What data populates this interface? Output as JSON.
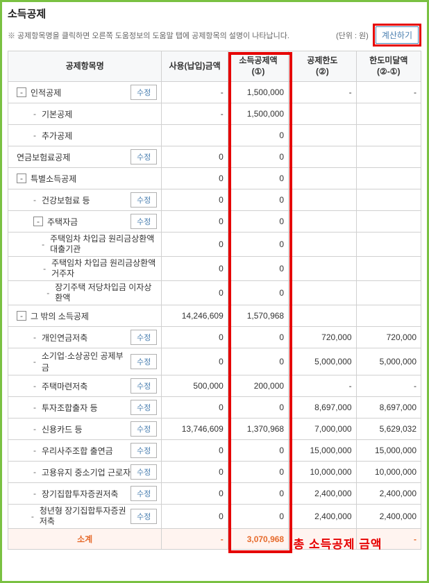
{
  "page": {
    "title": "소득공제",
    "subtitle": "※ 공제항목명을 클릭하면 오른쪽 도움정보의 도움말 탭에 공제항목의 설명이 나타납니다.",
    "unit": "(단위 : 원)",
    "calc_btn": "계산하기"
  },
  "headers": {
    "name": "공제항목명",
    "usage": "사용(납입)금액",
    "deduct": "소득공제액\n(①)",
    "limit": "공제한도\n(②)",
    "short": "한도미달액\n(②-①)"
  },
  "buttons": {
    "edit": "수정",
    "expand": "-"
  },
  "subtotal": {
    "label": "소계",
    "usage": "-",
    "deduct": "3,070,968",
    "short": "-"
  },
  "annotation": "총 소득공제 금액",
  "rows": [
    {
      "indent": 0,
      "exp": true,
      "bullet": false,
      "label": "인적공제",
      "edit": true,
      "usage": "-",
      "deduct": "1,500,000",
      "limit": "-",
      "short": "-"
    },
    {
      "indent": 1,
      "exp": false,
      "bullet": true,
      "label": "기본공제",
      "edit": false,
      "usage": "-",
      "deduct": "1,500,000",
      "limit": "",
      "short": ""
    },
    {
      "indent": 1,
      "exp": false,
      "bullet": true,
      "label": "추가공제",
      "edit": false,
      "usage": "",
      "deduct": "0",
      "limit": "",
      "short": ""
    },
    {
      "indent": 0,
      "exp": false,
      "bullet": false,
      "label": "연금보험료공제",
      "edit": true,
      "usage": "0",
      "deduct": "0",
      "limit": "",
      "short": ""
    },
    {
      "indent": 0,
      "exp": true,
      "bullet": false,
      "label": "특별소득공제",
      "edit": false,
      "usage": "0",
      "deduct": "0",
      "limit": "",
      "short": ""
    },
    {
      "indent": 1,
      "exp": false,
      "bullet": true,
      "label": "건강보험료 등",
      "edit": true,
      "usage": "0",
      "deduct": "0",
      "limit": "",
      "short": ""
    },
    {
      "indent": 1,
      "exp": true,
      "bullet": false,
      "label": "주택자금",
      "edit": true,
      "usage": "0",
      "deduct": "0",
      "limit": "",
      "short": ""
    },
    {
      "indent": 2,
      "exp": false,
      "bullet": true,
      "label": "주택임차 차입금 원리금상환액 대출기관",
      "edit": false,
      "usage": "0",
      "deduct": "0",
      "limit": "",
      "short": "",
      "two": true
    },
    {
      "indent": 2,
      "exp": false,
      "bullet": true,
      "label": "주택임차 차입금 원리금상환액 거주자",
      "edit": false,
      "usage": "0",
      "deduct": "0",
      "limit": "",
      "short": "",
      "two": true
    },
    {
      "indent": 2,
      "exp": false,
      "bullet": true,
      "label": "장기주택 저당차입금 이자상환액",
      "edit": false,
      "usage": "0",
      "deduct": "0",
      "limit": "",
      "short": "",
      "two": true
    },
    {
      "indent": 0,
      "exp": true,
      "bullet": false,
      "label": "그 밖의 소득공제",
      "edit": false,
      "usage": "14,246,609",
      "deduct": "1,570,968",
      "limit": "",
      "short": ""
    },
    {
      "indent": 1,
      "exp": false,
      "bullet": true,
      "label": "개인연금저축",
      "edit": true,
      "usage": "0",
      "deduct": "0",
      "limit": "720,000",
      "short": "720,000"
    },
    {
      "indent": 1,
      "exp": false,
      "bullet": true,
      "label": "소기업·소상공인 공제부금",
      "edit": true,
      "usage": "0",
      "deduct": "0",
      "limit": "5,000,000",
      "short": "5,000,000"
    },
    {
      "indent": 1,
      "exp": false,
      "bullet": true,
      "label": "주택마련저축",
      "edit": true,
      "usage": "500,000",
      "deduct": "200,000",
      "limit": "-",
      "short": "-"
    },
    {
      "indent": 1,
      "exp": false,
      "bullet": true,
      "label": "투자조합출자 등",
      "edit": true,
      "usage": "0",
      "deduct": "0",
      "limit": "8,697,000",
      "short": "8,697,000"
    },
    {
      "indent": 1,
      "exp": false,
      "bullet": true,
      "label": "신용카드 등",
      "edit": true,
      "usage": "13,746,609",
      "deduct": "1,370,968",
      "limit": "7,000,000",
      "short": "5,629,032"
    },
    {
      "indent": 1,
      "exp": false,
      "bullet": true,
      "label": "우리사주조합 출연금",
      "edit": true,
      "usage": "0",
      "deduct": "0",
      "limit": "15,000,000",
      "short": "15,000,000"
    },
    {
      "indent": 1,
      "exp": false,
      "bullet": true,
      "label": "고용유지 중소기업 근로자",
      "edit": true,
      "usage": "0",
      "deduct": "0",
      "limit": "10,000,000",
      "short": "10,000,000"
    },
    {
      "indent": 1,
      "exp": false,
      "bullet": true,
      "label": "장기집합투자증권저축",
      "edit": true,
      "usage": "0",
      "deduct": "0",
      "limit": "2,400,000",
      "short": "2,400,000"
    },
    {
      "indent": 1,
      "exp": false,
      "bullet": true,
      "label": "청년형 장기집합투자증권저축",
      "edit": true,
      "usage": "0",
      "deduct": "0",
      "limit": "2,400,000",
      "short": "2,400,000",
      "two": true
    }
  ]
}
